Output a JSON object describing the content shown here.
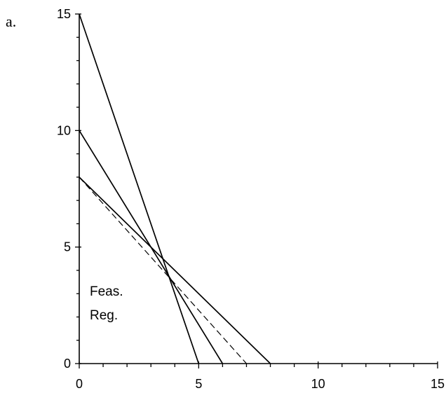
{
  "chart_data": {
    "type": "line",
    "panel_label": "a.",
    "xlim": [
      0,
      15
    ],
    "ylim": [
      0,
      15
    ],
    "x_ticks": [
      0,
      5,
      10,
      15
    ],
    "y_ticks": [
      0,
      5,
      10,
      15
    ],
    "x_minor_step": 1,
    "y_minor_step": 1,
    "grid": false,
    "annotation": [
      "Feas.",
      "Reg."
    ],
    "series": [
      {
        "style": "solid",
        "x": [
          0,
          5
        ],
        "y": [
          15,
          0
        ]
      },
      {
        "style": "solid",
        "x": [
          0,
          6
        ],
        "y": [
          10,
          0
        ]
      },
      {
        "style": "solid",
        "x": [
          0,
          8
        ],
        "y": [
          8,
          0
        ]
      },
      {
        "style": "dashed",
        "x": [
          0,
          7
        ],
        "y": [
          8,
          0
        ]
      }
    ]
  }
}
